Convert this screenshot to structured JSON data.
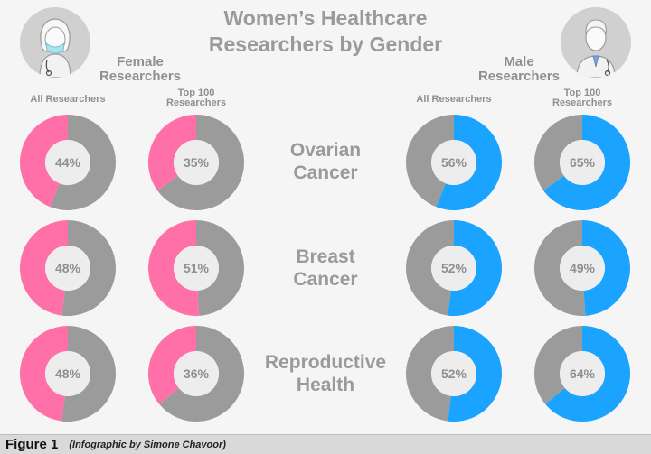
{
  "title_line1": "Women’s Healthcare",
  "title_line2": "Researchers by Gender",
  "female": {
    "label_line1": "Female",
    "label_line2": "Researchers",
    "col_all": "All Researchers",
    "col_top_line1": "Top 100",
    "col_top_line2": "Researchers"
  },
  "male": {
    "label_line1": "Male",
    "label_line2": "Researchers",
    "col_all": "All Researchers",
    "col_top_line1": "Top 100",
    "col_top_line2": "Researchers"
  },
  "rows": [
    {
      "line1": "Ovarian",
      "line2": "Cancer"
    },
    {
      "line1": "Breast",
      "line2": "Cancer"
    },
    {
      "line1": "Reproductive",
      "line2": "Health"
    }
  ],
  "footer": {
    "figure": "Figure 1",
    "credit": "(Infographic by Simone Chavoor)"
  },
  "colors": {
    "female": "#ff6fa8",
    "male": "#1aa3ff",
    "rest": "#9b9b9b",
    "center": "#ededed",
    "text": "#8f8f8f"
  },
  "chart_data": {
    "type": "pie",
    "unit": "%",
    "charts": [
      {
        "topic": "Ovarian Cancer",
        "gender": "Female",
        "group": "All Researchers",
        "value": 44
      },
      {
        "topic": "Ovarian Cancer",
        "gender": "Female",
        "group": "Top 100 Researchers",
        "value": 35
      },
      {
        "topic": "Ovarian Cancer",
        "gender": "Male",
        "group": "All Researchers",
        "value": 56
      },
      {
        "topic": "Ovarian Cancer",
        "gender": "Male",
        "group": "Top 100 Researchers",
        "value": 65
      },
      {
        "topic": "Breast Cancer",
        "gender": "Female",
        "group": "All Researchers",
        "value": 48
      },
      {
        "topic": "Breast Cancer",
        "gender": "Female",
        "group": "Top 100 Researchers",
        "value": 51
      },
      {
        "topic": "Breast Cancer",
        "gender": "Male",
        "group": "All Researchers",
        "value": 52
      },
      {
        "topic": "Breast Cancer",
        "gender": "Male",
        "group": "Top 100 Researchers",
        "value": 49
      },
      {
        "topic": "Reproductive Health",
        "gender": "Female",
        "group": "All Researchers",
        "value": 48
      },
      {
        "topic": "Reproductive Health",
        "gender": "Female",
        "group": "Top 100 Researchers",
        "value": 36
      },
      {
        "topic": "Reproductive Health",
        "gender": "Male",
        "group": "All Researchers",
        "value": 52
      },
      {
        "topic": "Reproductive Health",
        "gender": "Male",
        "group": "Top 100 Researchers",
        "value": 64
      }
    ]
  }
}
